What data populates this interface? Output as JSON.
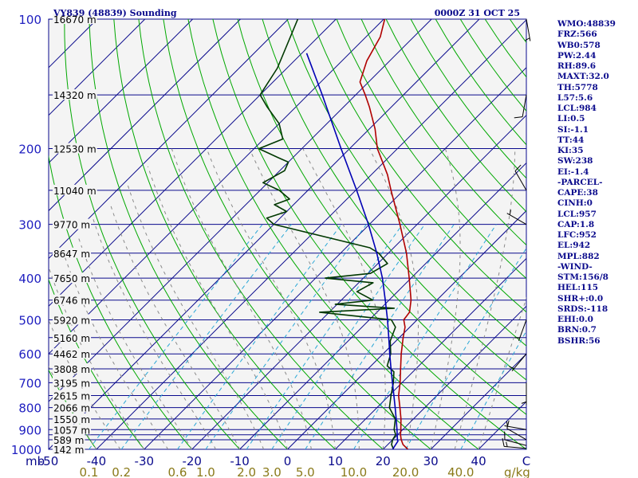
{
  "header": {
    "station": "VY839 (48839) Sounding",
    "time": "0000Z 31 OCT 25"
  },
  "indices": [
    "WMO:48839",
    "FRZ:566",
    "WB0:578",
    "PW:2.44",
    "RH:89.6",
    "MAXT:32.0",
    "TH:5778",
    "L57:5.6",
    "LCL:984",
    "LI:0.5",
    "SI:-1.1",
    "TT:44",
    "KI:35",
    "SW:238",
    "EI:-1.4",
    "-PARCEL-",
    "CAPE:38",
    "CINH:0",
    "LCL:957",
    "CAP:1.8",
    "LFC:952",
    "EL:942",
    "MPL:882",
    "-WIND-",
    "STM:156/8",
    "HEL:115",
    "SHR+:0.0",
    "SRDS:-118",
    "EHI:0.0",
    "BRN:0.7",
    "BSHR:56"
  ],
  "colors": {
    "background": "#ffffff",
    "plot_fill": "#f4f4f4",
    "isobar": "#0a0a8c",
    "isotherm": "#0a0a8c",
    "dry_adiabat": "#00a800",
    "moist_adiabat": "#8a8a8a",
    "mixing_ratio": "#2aa7d6",
    "temperature": "#b00000",
    "dewpoint": "#003800",
    "parcel": "#0000b4",
    "wind_barb": "#000000",
    "pressure_text": "#2020c0",
    "temp_text": "#0a0a8c",
    "mixing_text": "#8a7a1a",
    "height_text": "#000000",
    "text": "#0a0a8c"
  },
  "chart_data": {
    "type": "line",
    "chart_kind": "skew-T log-P sounding",
    "y_scale": "log",
    "pressure_range_hpa": [
      1000,
      100
    ],
    "temperature_range_c": [
      -50,
      50
    ],
    "pressure_labels": [
      "100",
      "200",
      "300",
      "400",
      "500",
      "600",
      "700",
      "800",
      "900",
      "1000"
    ],
    "pressure_levels_hpa": [
      100,
      200,
      300,
      400,
      500,
      600,
      700,
      800,
      900,
      1000
    ],
    "isobars_hpa": [
      100,
      150,
      200,
      250,
      300,
      350,
      400,
      450,
      500,
      550,
      600,
      650,
      700,
      750,
      800,
      850,
      900,
      925,
      950,
      1000
    ],
    "height_labels": [
      {
        "p": 100,
        "label": "16670 m"
      },
      {
        "p": 150,
        "label": "14320 m"
      },
      {
        "p": 200,
        "label": "12530 m"
      },
      {
        "p": 250,
        "label": "11040 m"
      },
      {
        "p": 300,
        "label": "9770 m"
      },
      {
        "p": 350,
        "label": "8647 m"
      },
      {
        "p": 400,
        "label": "7650 m"
      },
      {
        "p": 450,
        "label": "6746 m"
      },
      {
        "p": 500,
        "label": "5920 m"
      },
      {
        "p": 550,
        "label": "5160 m"
      },
      {
        "p": 600,
        "label": "4462 m"
      },
      {
        "p": 650,
        "label": "3808 m"
      },
      {
        "p": 700,
        "label": "3195 m"
      },
      {
        "p": 750,
        "label": "2615 m"
      },
      {
        "p": 800,
        "label": "2066 m"
      },
      {
        "p": 850,
        "label": "1550 m"
      },
      {
        "p": 900,
        "label": "1057 m"
      },
      {
        "p": 950,
        "label": "589 m"
      },
      {
        "p": 1000,
        "label": "142 m"
      }
    ],
    "x_unit_label": "mb",
    "x_tick_labels": [
      "-50",
      "-40",
      "-30",
      "-20",
      "-10",
      "0",
      "10",
      "20",
      "30",
      "40",
      "C"
    ],
    "x_tick_values": [
      -50,
      -40,
      -30,
      -20,
      -10,
      0,
      10,
      20,
      30,
      40,
      50
    ],
    "mixing_ratio_labels": [
      "0.1",
      "0.2",
      "0.6",
      "1.0",
      "2.0",
      "3.0",
      "5.0",
      "10.0",
      "20.0",
      "40.0"
    ],
    "mixing_ratio_gkg": [
      0.1,
      0.2,
      0.6,
      1.0,
      2.0,
      3.0,
      5.0,
      10.0,
      20.0,
      40.0
    ],
    "mixing_ratio_unit": "g/kg",
    "series": [
      {
        "key": "temperature",
        "points": [
          [
            1000,
            25.2
          ],
          [
            975,
            23.2
          ],
          [
            950,
            21.8
          ],
          [
            925,
            20.6
          ],
          [
            900,
            19.6
          ],
          [
            850,
            17.4
          ],
          [
            800,
            14.8
          ],
          [
            750,
            12.0
          ],
          [
            700,
            9.6
          ],
          [
            650,
            6.8
          ],
          [
            600,
            3.8
          ],
          [
            550,
            0.8
          ],
          [
            520,
            -1.0
          ],
          [
            500,
            -2.8
          ],
          [
            480,
            -3.2
          ],
          [
            450,
            -5.4
          ],
          [
            400,
            -10.4
          ],
          [
            350,
            -16.2
          ],
          [
            300,
            -23.6
          ],
          [
            280,
            -27.0
          ],
          [
            250,
            -32.6
          ],
          [
            230,
            -36.6
          ],
          [
            200,
            -44.2
          ],
          [
            180,
            -48.8
          ],
          [
            160,
            -54.6
          ],
          [
            150,
            -58.0
          ],
          [
            140,
            -61.8
          ],
          [
            125,
            -64.8
          ],
          [
            110,
            -67.0
          ],
          [
            100,
            -69.8
          ]
        ]
      },
      {
        "key": "dewpoint",
        "points": [
          [
            1000,
            22.2
          ],
          [
            975,
            20.8
          ],
          [
            950,
            20.0
          ],
          [
            925,
            19.6
          ],
          [
            900,
            18.2
          ],
          [
            850,
            16.2
          ],
          [
            800,
            12.6
          ],
          [
            750,
            10.4
          ],
          [
            700,
            8.2
          ],
          [
            660,
            6.0
          ],
          [
            640,
            3.4
          ],
          [
            600,
            1.6
          ],
          [
            560,
            -1.2
          ],
          [
            520,
            -3.0
          ],
          [
            500,
            -5.4
          ],
          [
            480,
            -22.0
          ],
          [
            470,
            -7.2
          ],
          [
            460,
            -20.4
          ],
          [
            450,
            -13.4
          ],
          [
            430,
            -18.5
          ],
          [
            410,
            -17.0
          ],
          [
            400,
            -28.0
          ],
          [
            390,
            -19.5
          ],
          [
            370,
            -18.0
          ],
          [
            350,
            -22.0
          ],
          [
            340,
            -25.0
          ],
          [
            300,
            -50.0
          ],
          [
            290,
            -52.8
          ],
          [
            280,
            -50.0
          ],
          [
            270,
            -54.0
          ],
          [
            262,
            -52.0
          ],
          [
            250,
            -56.0
          ],
          [
            240,
            -61.0
          ],
          [
            225,
            -59.0
          ],
          [
            215,
            -60.0
          ],
          [
            210,
            -63.0
          ],
          [
            200,
            -69.0
          ],
          [
            190,
            -66.0
          ],
          [
            175,
            -70.0
          ],
          [
            160,
            -76.0
          ],
          [
            150,
            -80.0
          ],
          [
            130,
            -82.0
          ],
          [
            100,
            -88.0
          ]
        ]
      },
      {
        "key": "parcel",
        "points": [
          [
            1000,
            22.0
          ],
          [
            957,
            21.4
          ],
          [
            950,
            21.0
          ],
          [
            900,
            18.8
          ],
          [
            850,
            16.4
          ],
          [
            800,
            13.8
          ],
          [
            750,
            11.0
          ],
          [
            700,
            8.0
          ],
          [
            650,
            4.8
          ],
          [
            600,
            1.4
          ],
          [
            550,
            -2.2
          ],
          [
            500,
            -6.2
          ],
          [
            450,
            -10.8
          ],
          [
            400,
            -16.0
          ],
          [
            350,
            -22.4
          ],
          [
            300,
            -30.2
          ],
          [
            250,
            -39.8
          ],
          [
            200,
            -51.8
          ],
          [
            150,
            -67.0
          ],
          [
            120,
            -79.0
          ]
        ]
      }
    ],
    "wind_barbs": [
      {
        "p": 995,
        "dir": 275,
        "spd": 15
      },
      {
        "p": 980,
        "dir": 285,
        "spd": 10
      },
      {
        "p": 950,
        "dir": 300,
        "spd": 10
      },
      {
        "p": 900,
        "dir": 280,
        "spd": 5
      },
      {
        "p": 700,
        "dir": 180,
        "spd": 5
      },
      {
        "p": 600,
        "dir": 220,
        "spd": 5
      },
      {
        "p": 500,
        "dir": 200,
        "spd": 5
      },
      {
        "p": 300,
        "dir": 300,
        "spd": 5
      },
      {
        "p": 250,
        "dir": 330,
        "spd": 10
      },
      {
        "p": 150,
        "dir": 190,
        "spd": 10
      },
      {
        "p": 100,
        "dir": 170,
        "spd": 5
      }
    ],
    "grid": true
  }
}
